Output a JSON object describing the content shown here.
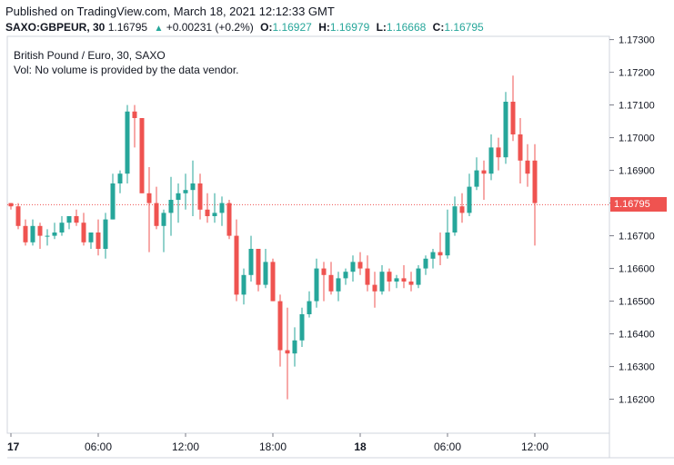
{
  "header": {
    "published": "Published on TradingView.com, March 18, 2021 12:12:33 GMT",
    "symbol_interval": "SAXO:GBPEUR, 30",
    "price": "1.16795",
    "change": "+0.00231 (+0.2%)",
    "open_key": "O:",
    "open_val": "1.16927",
    "high_key": "H:",
    "high_val": "1.16979",
    "low_key": "L:",
    "low_val": "1.16668",
    "close_key": "C:",
    "close_val": "1.16795"
  },
  "legend": {
    "title": "British Pound / Euro, 30, SAXO",
    "vol": "Vol: No volume is provided by the data vendor."
  },
  "colors": {
    "up": "#26a69a",
    "down": "#ef5350",
    "grid": "#e0e3eb",
    "text": "#131722"
  },
  "chart_data": {
    "type": "candlestick",
    "interval": "30",
    "last_price": 1.16795,
    "ylim": [
      1.1611,
      1.1731
    ],
    "y_ticks": [
      1.162,
      1.163,
      1.164,
      1.165,
      1.166,
      1.167,
      1.168,
      1.169,
      1.17,
      1.171,
      1.172,
      1.173
    ],
    "y_tick_labels": [
      "1.16200",
      "1.16300",
      "1.16400",
      "1.16500",
      "1.16600",
      "1.16700",
      "1.16800",
      "1.16900",
      "1.17000",
      "1.17100",
      "1.17200",
      "1.17300"
    ],
    "x_ticks": [
      {
        "label": "17",
        "bold": true,
        "bar": 0
      },
      {
        "label": "06:00",
        "bold": false,
        "bar": 12
      },
      {
        "label": "12:00",
        "bold": false,
        "bar": 24
      },
      {
        "label": "18:00",
        "bold": false,
        "bar": 36
      },
      {
        "label": "18",
        "bold": true,
        "bar": 48
      },
      {
        "label": "06:00",
        "bold": false,
        "bar": 60
      },
      {
        "label": "12:00",
        "bold": false,
        "bar": 72
      }
    ],
    "candles": [
      [
        1.168,
        1.168,
        1.1678,
        1.1679
      ],
      [
        1.1679,
        1.168,
        1.1672,
        1.1673
      ],
      [
        1.1673,
        1.1675,
        1.1667,
        1.1668
      ],
      [
        1.1668,
        1.1675,
        1.1667,
        1.1673
      ],
      [
        1.1673,
        1.1674,
        1.1666,
        1.167
      ],
      [
        1.167,
        1.1672,
        1.1667,
        1.167
      ],
      [
        1.167,
        1.1674,
        1.1669,
        1.1671
      ],
      [
        1.1671,
        1.1676,
        1.167,
        1.1674
      ],
      [
        1.1674,
        1.1676,
        1.1672,
        1.1676
      ],
      [
        1.1676,
        1.1678,
        1.1673,
        1.1674
      ],
      [
        1.1674,
        1.1677,
        1.1667,
        1.1668
      ],
      [
        1.1668,
        1.1671,
        1.1666,
        1.1671
      ],
      [
        1.1671,
        1.1675,
        1.1664,
        1.1666
      ],
      [
        1.1666,
        1.1677,
        1.1663,
        1.1675
      ],
      [
        1.1675,
        1.1689,
        1.1675,
        1.1686
      ],
      [
        1.1686,
        1.169,
        1.1683,
        1.1689
      ],
      [
        1.1689,
        1.171,
        1.1686,
        1.1708
      ],
      [
        1.1708,
        1.171,
        1.1697,
        1.1706
      ],
      [
        1.1706,
        1.1706,
        1.1683,
        1.1683
      ],
      [
        1.1683,
        1.1691,
        1.1665,
        1.168
      ],
      [
        1.168,
        1.1685,
        1.1672,
        1.1673
      ],
      [
        1.1673,
        1.1678,
        1.1665,
        1.1677
      ],
      [
        1.1677,
        1.1688,
        1.167,
        1.1681
      ],
      [
        1.1681,
        1.1686,
        1.1674,
        1.1683
      ],
      [
        1.1683,
        1.1689,
        1.1678,
        1.1684
      ],
      [
        1.1684,
        1.1693,
        1.1676,
        1.1686
      ],
      [
        1.1686,
        1.1689,
        1.1675,
        1.1678
      ],
      [
        1.1678,
        1.1683,
        1.1674,
        1.1676
      ],
      [
        1.1676,
        1.1683,
        1.1674,
        1.1677
      ],
      [
        1.1677,
        1.1682,
        1.1673,
        1.168
      ],
      [
        1.168,
        1.1681,
        1.1669,
        1.167
      ],
      [
        1.167,
        1.1675,
        1.165,
        1.1652
      ],
      [
        1.1652,
        1.166,
        1.1649,
        1.1658
      ],
      [
        1.1658,
        1.167,
        1.1656,
        1.1666
      ],
      [
        1.1666,
        1.1666,
        1.1653,
        1.1655
      ],
      [
        1.1655,
        1.1666,
        1.1654,
        1.1662
      ],
      [
        1.1662,
        1.1663,
        1.165,
        1.165
      ],
      [
        1.165,
        1.1652,
        1.163,
        1.1635
      ],
      [
        1.1635,
        1.1648,
        1.162,
        1.1634
      ],
      [
        1.1634,
        1.1642,
        1.163,
        1.1638
      ],
      [
        1.1638,
        1.1648,
        1.1636,
        1.1646
      ],
      [
        1.1646,
        1.1653,
        1.1645,
        1.165
      ],
      [
        1.165,
        1.1663,
        1.1648,
        1.166
      ],
      [
        1.166,
        1.1662,
        1.165,
        1.1658
      ],
      [
        1.1658,
        1.1662,
        1.1652,
        1.1653
      ],
      [
        1.1653,
        1.1659,
        1.165,
        1.1657
      ],
      [
        1.1657,
        1.166,
        1.1655,
        1.1659
      ],
      [
        1.1659,
        1.1664,
        1.1656,
        1.1662
      ],
      [
        1.1662,
        1.1665,
        1.1658,
        1.166
      ],
      [
        1.166,
        1.1664,
        1.1653,
        1.1655
      ],
      [
        1.1655,
        1.1659,
        1.1648,
        1.1653
      ],
      [
        1.1653,
        1.1661,
        1.1652,
        1.1659
      ],
      [
        1.1659,
        1.166,
        1.1653,
        1.1656
      ],
      [
        1.1656,
        1.1658,
        1.1654,
        1.1657
      ],
      [
        1.1657,
        1.1661,
        1.1654,
        1.1656
      ],
      [
        1.1656,
        1.1659,
        1.1653,
        1.1655
      ],
      [
        1.1655,
        1.1661,
        1.1654,
        1.166
      ],
      [
        1.166,
        1.1664,
        1.1658,
        1.1663
      ],
      [
        1.1663,
        1.1666,
        1.166,
        1.1665
      ],
      [
        1.1665,
        1.1671,
        1.1661,
        1.1664
      ],
      [
        1.1664,
        1.1678,
        1.1663,
        1.1671
      ],
      [
        1.1671,
        1.1682,
        1.167,
        1.1679
      ],
      [
        1.1679,
        1.1683,
        1.1674,
        1.1677
      ],
      [
        1.1677,
        1.1689,
        1.1676,
        1.1685
      ],
      [
        1.1685,
        1.1694,
        1.1684,
        1.169
      ],
      [
        1.169,
        1.1693,
        1.1681,
        1.1689
      ],
      [
        1.1689,
        1.1701,
        1.1687,
        1.1697
      ],
      [
        1.1697,
        1.17,
        1.169,
        1.1694
      ],
      [
        1.1694,
        1.1714,
        1.1692,
        1.1711
      ],
      [
        1.1711,
        1.1719,
        1.1699,
        1.1701
      ],
      [
        1.1701,
        1.1706,
        1.1686,
        1.1693
      ],
      [
        1.1693,
        1.1698,
        1.1685,
        1.1689
      ],
      [
        1.1693,
        1.1698,
        1.1667,
        1.168
      ]
    ]
  }
}
